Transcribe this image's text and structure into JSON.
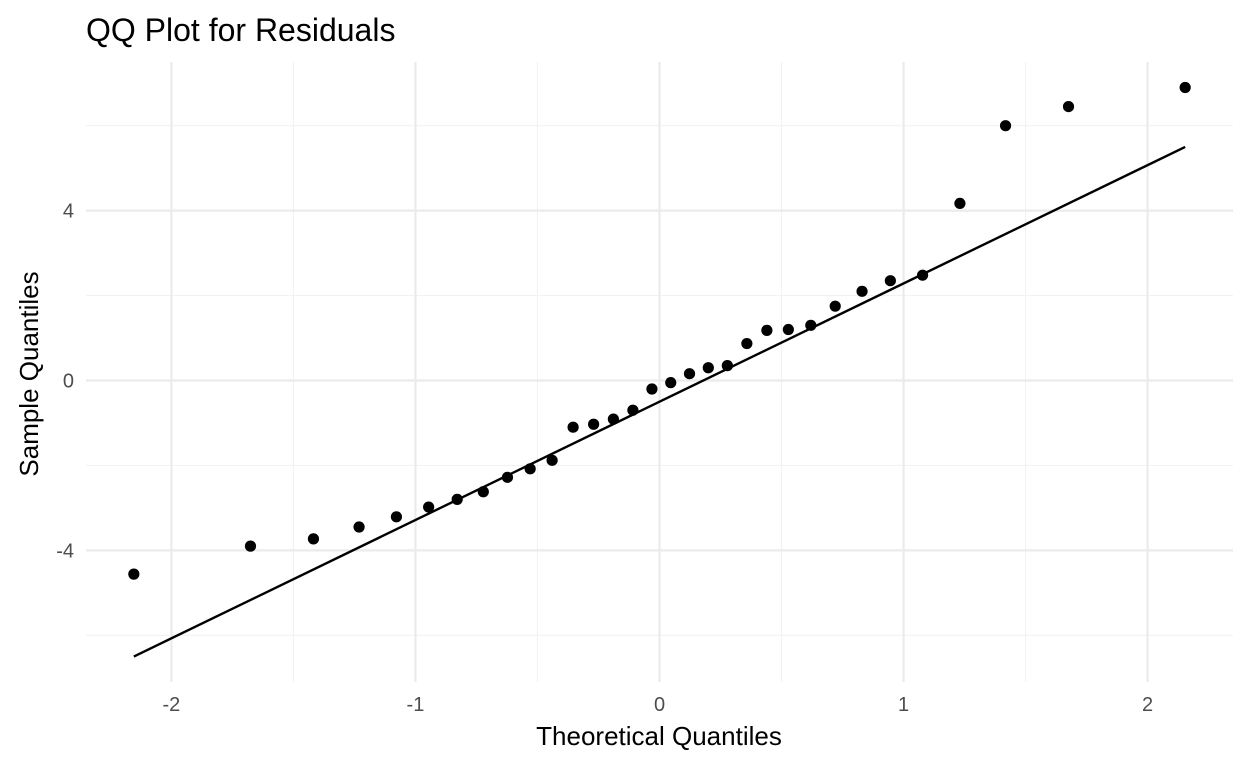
{
  "chart_data": {
    "type": "scatter",
    "title": "QQ Plot for Residuals",
    "xlabel": "Theoretical Quantiles",
    "ylabel": "Sample Quantiles",
    "xlim": [
      -2.35,
      2.35
    ],
    "ylim": [
      -7.1,
      7.5
    ],
    "x_ticks": [
      {
        "value": -2,
        "label": "-2"
      },
      {
        "value": -1,
        "label": "-1"
      },
      {
        "value": 0,
        "label": "0"
      },
      {
        "value": 1,
        "label": "1"
      },
      {
        "value": 2,
        "label": "2"
      }
    ],
    "y_ticks": [
      {
        "value": -4,
        "label": "-4"
      },
      {
        "value": 0,
        "label": "0"
      },
      {
        "value": 4,
        "label": "4"
      }
    ],
    "x_minor": [
      -1.5,
      -0.5,
      0.5,
      1.5
    ],
    "y_minor": [
      -6,
      -2,
      2,
      6
    ],
    "grid": true,
    "legend": "none",
    "points": [
      {
        "x": -2.154,
        "y": -4.56
      },
      {
        "x": -1.676,
        "y": -3.9
      },
      {
        "x": -1.418,
        "y": -3.73
      },
      {
        "x": -1.231,
        "y": -3.45
      },
      {
        "x": -1.078,
        "y": -3.21
      },
      {
        "x": -0.946,
        "y": -2.98
      },
      {
        "x": -0.829,
        "y": -2.8
      },
      {
        "x": -0.722,
        "y": -2.62
      },
      {
        "x": -0.623,
        "y": -2.28
      },
      {
        "x": -0.53,
        "y": -2.08
      },
      {
        "x": -0.44,
        "y": -1.88
      },
      {
        "x": -0.354,
        "y": -1.1
      },
      {
        "x": -0.27,
        "y": -1.03
      },
      {
        "x": -0.189,
        "y": -0.91
      },
      {
        "x": -0.109,
        "y": -0.7
      },
      {
        "x": -0.031,
        "y": -0.2
      },
      {
        "x": 0.046,
        "y": -0.05
      },
      {
        "x": 0.123,
        "y": 0.16
      },
      {
        "x": 0.2,
        "y": 0.3
      },
      {
        "x": 0.278,
        "y": 0.35
      },
      {
        "x": 0.358,
        "y": 0.87
      },
      {
        "x": 0.44,
        "y": 1.18
      },
      {
        "x": 0.528,
        "y": 1.2
      },
      {
        "x": 0.62,
        "y": 1.3
      },
      {
        "x": 0.72,
        "y": 1.75
      },
      {
        "x": 0.83,
        "y": 2.1
      },
      {
        "x": 0.946,
        "y": 2.35
      },
      {
        "x": 1.078,
        "y": 2.48
      },
      {
        "x": 1.231,
        "y": 4.17
      },
      {
        "x": 1.418,
        "y": 6.0
      },
      {
        "x": 1.676,
        "y": 6.45
      },
      {
        "x": 2.154,
        "y": 6.9
      }
    ],
    "reference_line": {
      "x1": -2.154,
      "y1": -6.5,
      "x2": 2.154,
      "y2": 5.5
    },
    "colors": {
      "points": "#000000",
      "line": "#000000"
    }
  }
}
